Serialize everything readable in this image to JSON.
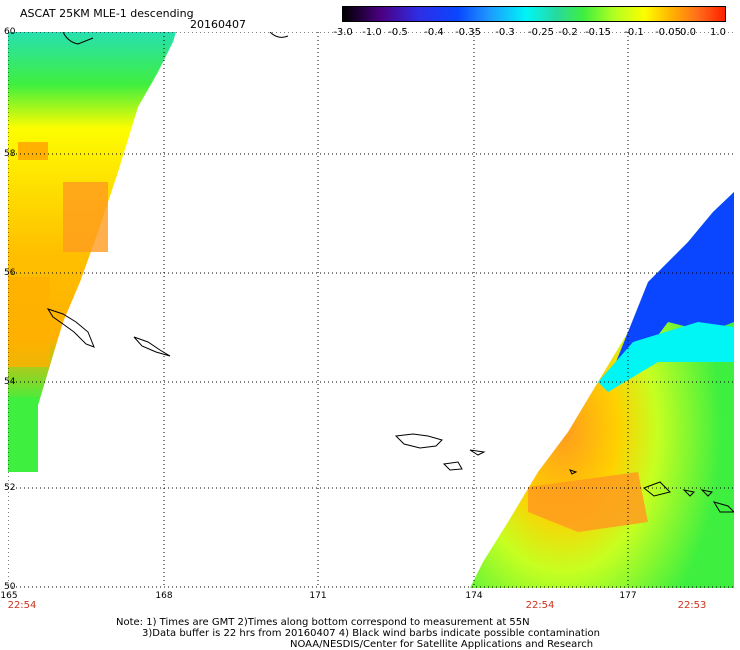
{
  "header": {
    "title": "ASCAT 25KM MLE-1 descending",
    "date": "20160407"
  },
  "colorbar": {
    "ticks": [
      "-3.0",
      "-1.0",
      "-0.5",
      "-0.4",
      "-0.35",
      "-0.3",
      "-0.25",
      "-0.2",
      "-0.15",
      "-0.1",
      "-0.05",
      "0.0",
      "1.0"
    ]
  },
  "map": {
    "lat_labels": [
      "60",
      "58",
      "56",
      "54",
      "52",
      "50"
    ],
    "lon_labels": [
      "165",
      "168",
      "171",
      "174",
      "177"
    ],
    "time_labels": [
      "22:54",
      "22:54",
      "22:53"
    ],
    "colors": {
      "green": "#3fef3f",
      "yellow": "#fdfd00",
      "orange": "#ff9b1e",
      "blue": "#0a46ff",
      "cyan": "#00f5f5"
    }
  },
  "notes": {
    "line1": "Note: 1) Times are GMT 2)Times along bottom correspond to measurement at 55N",
    "line2": "3)Data buffer is 22 hrs from 20160407 4) Black wind barbs indicate possible contamination",
    "line3": "NOAA/NESDIS/Center for Satellite Applications and Research"
  }
}
